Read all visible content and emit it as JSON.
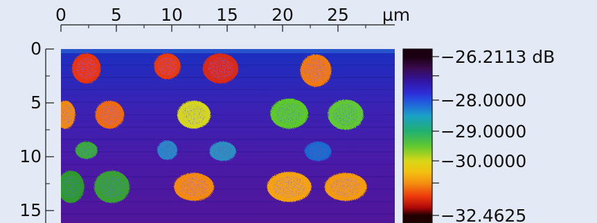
{
  "image": {
    "type": "2D intensity map with spots and colorbar",
    "background_color": "#e4eaf5",
    "x_axis": {
      "unit": "µm",
      "range": [
        0,
        30
      ],
      "ticks": [
        0,
        5,
        10,
        15,
        20,
        25
      ],
      "tick_labels": [
        "0",
        "5",
        "10",
        "15",
        "20",
        "25"
      ],
      "position": "top"
    },
    "y_axis": {
      "range": [
        0,
        15
      ],
      "ticks": [
        0,
        5,
        10,
        15
      ],
      "tick_labels": [
        "0",
        "5",
        "10",
        "15"
      ],
      "position": "left",
      "inverted": true
    },
    "background_gradient_colors": [
      "#1a2fc0",
      "#3a22b4",
      "#4a1aa6",
      "#50169a"
    ],
    "spots": [
      {
        "x": 2.3,
        "y": 1.8,
        "rx": 1.3,
        "ry": 1.4,
        "color": "#e8360a"
      },
      {
        "x": 9.6,
        "y": 1.6,
        "rx": 1.2,
        "ry": 1.2,
        "color": "#e83a0a"
      },
      {
        "x": 14.4,
        "y": 1.8,
        "rx": 1.6,
        "ry": 1.4,
        "color": "#d82a12"
      },
      {
        "x": 23.0,
        "y": 2.0,
        "rx": 1.4,
        "ry": 1.5,
        "color": "#f07a0a"
      },
      {
        "x": 0.4,
        "y": 6.1,
        "rx": 0.9,
        "ry": 1.3,
        "color": "#f08a0a"
      },
      {
        "x": 4.4,
        "y": 6.1,
        "rx": 1.3,
        "ry": 1.3,
        "color": "#ee6a0c"
      },
      {
        "x": 12.0,
        "y": 6.1,
        "rx": 1.5,
        "ry": 1.3,
        "color": "#d6d61a"
      },
      {
        "x": 20.6,
        "y": 6.0,
        "rx": 1.7,
        "ry": 1.4,
        "color": "#5cc82c"
      },
      {
        "x": 25.7,
        "y": 6.1,
        "rx": 1.6,
        "ry": 1.4,
        "color": "#5ec830"
      },
      {
        "x": 2.3,
        "y": 9.4,
        "rx": 1.0,
        "ry": 0.8,
        "color": "#3aaa3a"
      },
      {
        "x": 9.6,
        "y": 9.4,
        "rx": 0.9,
        "ry": 0.9,
        "color": "#2a86c8"
      },
      {
        "x": 14.6,
        "y": 9.5,
        "rx": 1.2,
        "ry": 0.9,
        "color": "#2e8ec2"
      },
      {
        "x": 23.2,
        "y": 9.5,
        "rx": 1.2,
        "ry": 0.9,
        "color": "#1e6ad0"
      },
      {
        "x": 0.9,
        "y": 12.8,
        "rx": 1.2,
        "ry": 1.5,
        "color": "#2e9a2e"
      },
      {
        "x": 4.6,
        "y": 12.8,
        "rx": 1.6,
        "ry": 1.5,
        "color": "#38a034"
      },
      {
        "x": 12.0,
        "y": 12.8,
        "rx": 1.8,
        "ry": 1.3,
        "color": "#f48a0c"
      },
      {
        "x": 20.6,
        "y": 12.8,
        "rx": 2.0,
        "ry": 1.4,
        "color": "#f4a20e"
      },
      {
        "x": 25.7,
        "y": 12.8,
        "rx": 1.9,
        "ry": 1.3,
        "color": "#f49a0e"
      }
    ],
    "colorbar": {
      "unit": "dB",
      "tick_labels": [
        "−26.2113 dB",
        "−28.0000",
        "−29.0000",
        "−30.0000",
        "−32.4625"
      ],
      "tick_values": [
        -26.2113,
        -28.0,
        -29.0,
        -30.0,
        -32.4625
      ],
      "range": [
        -32.4625,
        -26.2113
      ],
      "extra_tick_values": [
        -27.0,
        -31.0
      ],
      "gradient": [
        {
          "value": -26.2113,
          "color": "#1a0010"
        },
        {
          "value": -26.7,
          "color": "#3a0a50"
        },
        {
          "value": -27.2,
          "color": "#3214a0"
        },
        {
          "value": -27.7,
          "color": "#2e2cd8"
        },
        {
          "value": -28.0,
          "color": "#2450e0"
        },
        {
          "value": -28.5,
          "color": "#1aa0c8"
        },
        {
          "value": -29.0,
          "color": "#20b070"
        },
        {
          "value": -29.5,
          "color": "#60c830"
        },
        {
          "value": -30.0,
          "color": "#d8d818"
        },
        {
          "value": -30.5,
          "color": "#f4c010"
        },
        {
          "value": -31.0,
          "color": "#f49010"
        },
        {
          "value": -31.6,
          "color": "#ec3a0c"
        },
        {
          "value": -32.1,
          "color": "#b00808"
        },
        {
          "value": -32.4625,
          "color": "#200000"
        }
      ]
    }
  }
}
